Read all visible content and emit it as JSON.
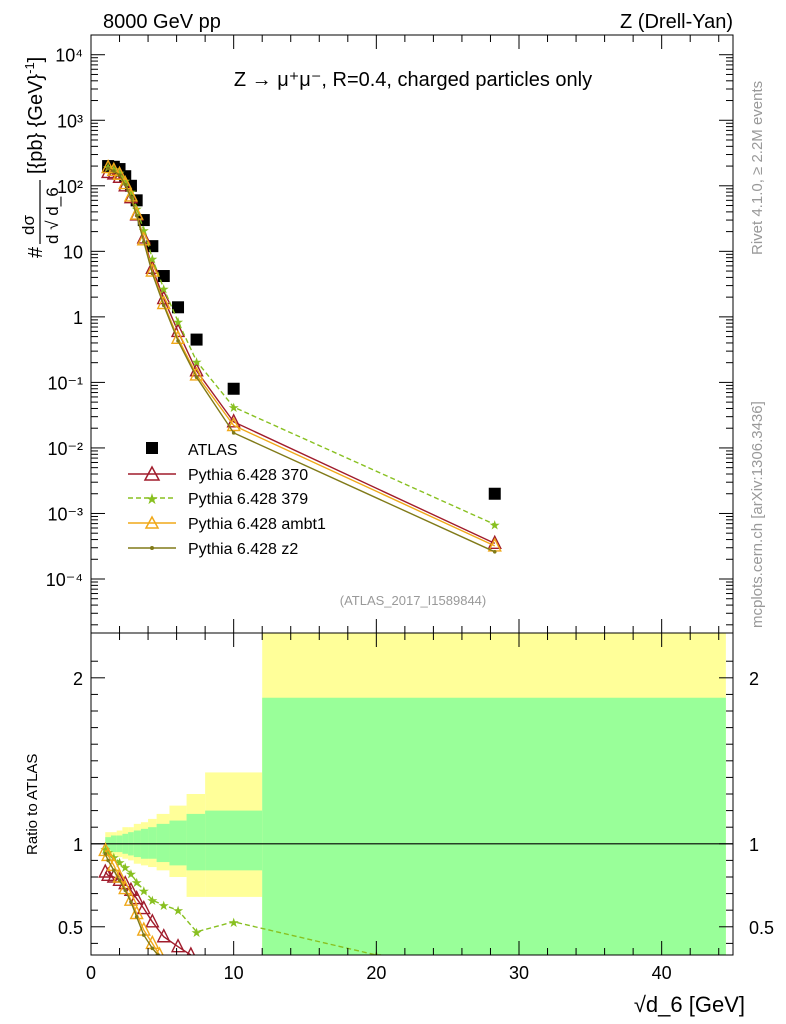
{
  "header": {
    "left": "8000 GeV pp",
    "right": "Z (Drell-Yan)",
    "side_top": "Rivet 4.1.0, ≥ 2.2M events",
    "side_bottom": "mcplots.cern.ch [arXiv:1306.3436]",
    "analysis_id": "(ATLAS_2017_I1589844)"
  },
  "main_plot": {
    "title": "Z → μ⁺μ⁻, R=0.4, charged particles only",
    "ylabel": "#dσ/d√d_6 [{pb} {GeV}⁻¹]",
    "ylabel_prefix": "#",
    "ylabel_num": "dσ",
    "ylabel_den_d": "d",
    "ylabel_den_var": "d_6",
    "ylabel_units": "[{pb} {GeV}",
    "ylabel_exp": "-1",
    "ylabel_close": "]",
    "ylim": [
      1.5e-05,
      20000
    ],
    "ytick_labels": [
      "10⁻⁴",
      "10⁻³",
      "10⁻²",
      "10⁻¹",
      "1",
      "10",
      "10²",
      "10³",
      "10⁴"
    ]
  },
  "ratio_plot": {
    "ylabel": "Ratio to ATLAS",
    "ylim": [
      0.33,
      2.27
    ],
    "ytick_labels": [
      "0.5",
      "1",
      "2"
    ]
  },
  "xaxis": {
    "label_prefix": "√",
    "label": "d_6 [GeV]",
    "xlim": [
      0,
      45
    ],
    "tick_labels": [
      "0",
      "10",
      "20",
      "30",
      "40"
    ]
  },
  "legend": [
    {
      "label": "ATLAS"
    },
    {
      "label": "Pythia 6.428 370"
    },
    {
      "label": "Pythia 6.428 379"
    },
    {
      "label": "Pythia 6.428 ambt1"
    },
    {
      "label": "Pythia 6.428 z2"
    }
  ],
  "chart_data": {
    "type": "scatter",
    "title": "Z → μ⁺μ⁻, R=0.4, charged particles only",
    "xlabel": "√d_6 [GeV]",
    "ylabel": "dσ/d√d_6 [pb GeV⁻¹]",
    "xlim": [
      0,
      45
    ],
    "ylim": [
      1.5e-05,
      20000
    ],
    "yscale": "log",
    "series": [
      {
        "name": "ATLAS",
        "color": "#000000",
        "marker": "square",
        "x": [
          1.2,
          1.6,
          2.0,
          2.4,
          2.8,
          3.2,
          3.7,
          4.3,
          5.1,
          6.1,
          7.4,
          10.0,
          28.3
        ],
        "y": [
          200,
          195,
          180,
          140,
          100,
          60,
          30,
          12,
          4.2,
          1.4,
          0.45,
          0.08,
          0.002
        ]
      },
      {
        "name": "Pythia 6.428 370",
        "color": "#a01c2c",
        "marker": "triangle-open",
        "line": "solid",
        "x": [
          1.2,
          1.6,
          2.0,
          2.4,
          2.8,
          3.2,
          3.7,
          4.3,
          5.1,
          6.1,
          7.4,
          10.0,
          28.3
        ],
        "y": [
          160,
          152,
          135,
          100,
          66,
          36,
          16,
          5.5,
          1.9,
          0.6,
          0.15,
          0.025,
          0.00035
        ]
      },
      {
        "name": "Pythia 6.428 379",
        "color": "#88c020",
        "marker": "star",
        "line": "dashed",
        "x": [
          1.2,
          1.6,
          2.0,
          2.4,
          2.8,
          3.2,
          3.7,
          4.3,
          5.1,
          6.1,
          7.4,
          10.0,
          28.3
        ],
        "y": [
          195,
          180,
          160,
          120,
          82,
          45,
          21,
          7.8,
          2.7,
          0.85,
          0.21,
          0.042,
          0.00068
        ]
      },
      {
        "name": "Pythia 6.428 ambt1",
        "color": "#f0a818",
        "marker": "triangle-open",
        "line": "solid",
        "x": [
          1.2,
          1.6,
          2.0,
          2.4,
          2.8,
          3.2,
          3.7,
          4.3,
          5.1,
          6.1,
          7.4,
          10.0,
          28.3
        ],
        "y": [
          190,
          172,
          150,
          108,
          70,
          37,
          15,
          5.0,
          1.6,
          0.47,
          0.13,
          0.022,
          0.00032
        ]
      },
      {
        "name": "Pythia 6.428 z2",
        "color": "#807a18",
        "marker": "dot",
        "line": "solid",
        "x": [
          1.2,
          1.6,
          2.0,
          2.4,
          2.8,
          3.2,
          3.7,
          4.3,
          5.1,
          6.1,
          7.4,
          10.0,
          28.3
        ],
        "y": [
          185,
          168,
          146,
          104,
          67,
          35,
          14,
          4.6,
          1.5,
          0.43,
          0.12,
          0.017,
          0.00026
        ]
      }
    ],
    "ratio": {
      "ylabel": "Ratio to ATLAS",
      "ylim": [
        0.33,
        2.27
      ],
      "band_edges": [
        1.0,
        1.4,
        1.8,
        2.2,
        2.6,
        3.0,
        3.5,
        4.0,
        4.6,
        5.5,
        6.7,
        8.0,
        12.0,
        44.5
      ],
      "inner_band": [
        [
          0.96,
          1.04
        ],
        [
          0.95,
          1.05
        ],
        [
          0.95,
          1.05
        ],
        [
          0.94,
          1.06
        ],
        [
          0.93,
          1.07
        ],
        [
          0.92,
          1.08
        ],
        [
          0.91,
          1.09
        ],
        [
          0.91,
          1.1
        ],
        [
          0.89,
          1.12
        ],
        [
          0.87,
          1.14
        ],
        [
          0.84,
          1.18
        ],
        [
          0.84,
          1.2
        ],
        [
          0.33,
          1.88
        ]
      ],
      "outer_band": [
        [
          0.93,
          1.07
        ],
        [
          0.93,
          1.07
        ],
        [
          0.92,
          1.08
        ],
        [
          0.91,
          1.1
        ],
        [
          0.9,
          1.1
        ],
        [
          0.88,
          1.12
        ],
        [
          0.87,
          1.13
        ],
        [
          0.86,
          1.15
        ],
        [
          0.84,
          1.18
        ],
        [
          0.8,
          1.23
        ],
        [
          0.68,
          1.3
        ],
        [
          0.68,
          1.43
        ],
        [
          0.33,
          2.27
        ]
      ],
      "series": [
        {
          "name": "Pythia 6.428 370",
          "color": "#a01c2c",
          "marker": "triangle-open",
          "line": "solid",
          "x": [
            1.0,
            1.2,
            1.6,
            2.0,
            2.4,
            2.8,
            3.2,
            3.7,
            4.3,
            5.1,
            6.1,
            7.0
          ],
          "y": [
            0.83,
            0.81,
            0.8,
            0.78,
            0.76,
            0.72,
            0.67,
            0.61,
            0.53,
            0.44,
            0.38,
            0.33
          ]
        },
        {
          "name": "Pythia 6.428 379",
          "color": "#88c020",
          "marker": "star",
          "line": "dashed",
          "x": [
            1.0,
            1.2,
            1.6,
            2.0,
            2.4,
            2.8,
            3.2,
            3.7,
            4.3,
            5.1,
            6.1,
            7.4,
            10.0,
            20.0
          ],
          "y": [
            0.97,
            0.95,
            0.92,
            0.89,
            0.86,
            0.82,
            0.77,
            0.72,
            0.66,
            0.63,
            0.6,
            0.47,
            0.53,
            0.33
          ]
        },
        {
          "name": "Pythia 6.428 ambt1",
          "color": "#f0a818",
          "marker": "triangle-open",
          "line": "solid",
          "x": [
            1.0,
            1.2,
            1.6,
            2.0,
            2.4,
            2.8,
            3.2,
            3.7,
            4.3,
            4.8
          ],
          "y": [
            0.96,
            0.93,
            0.87,
            0.8,
            0.73,
            0.66,
            0.58,
            0.48,
            0.4,
            0.33
          ]
        },
        {
          "name": "Pythia 6.428 z2",
          "color": "#807a18",
          "marker": "dot",
          "line": "solid",
          "x": [
            1.0,
            1.2,
            1.6,
            2.0,
            2.4,
            2.8,
            3.2,
            3.7,
            4.3,
            4.7
          ],
          "y": [
            0.94,
            0.9,
            0.84,
            0.78,
            0.72,
            0.65,
            0.56,
            0.45,
            0.37,
            0.33
          ]
        }
      ]
    }
  }
}
